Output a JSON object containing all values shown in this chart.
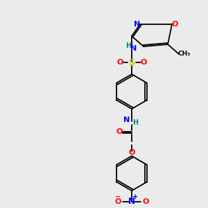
{
  "bg_color": "#ebebeb",
  "bond_color": "#000000",
  "atom_colors": {
    "N": "#0000ff",
    "O": "#ff0000",
    "S": "#cccc00",
    "H": "#008080",
    "C": "#000000"
  },
  "font_size": 7.5,
  "bond_width": 1.3
}
